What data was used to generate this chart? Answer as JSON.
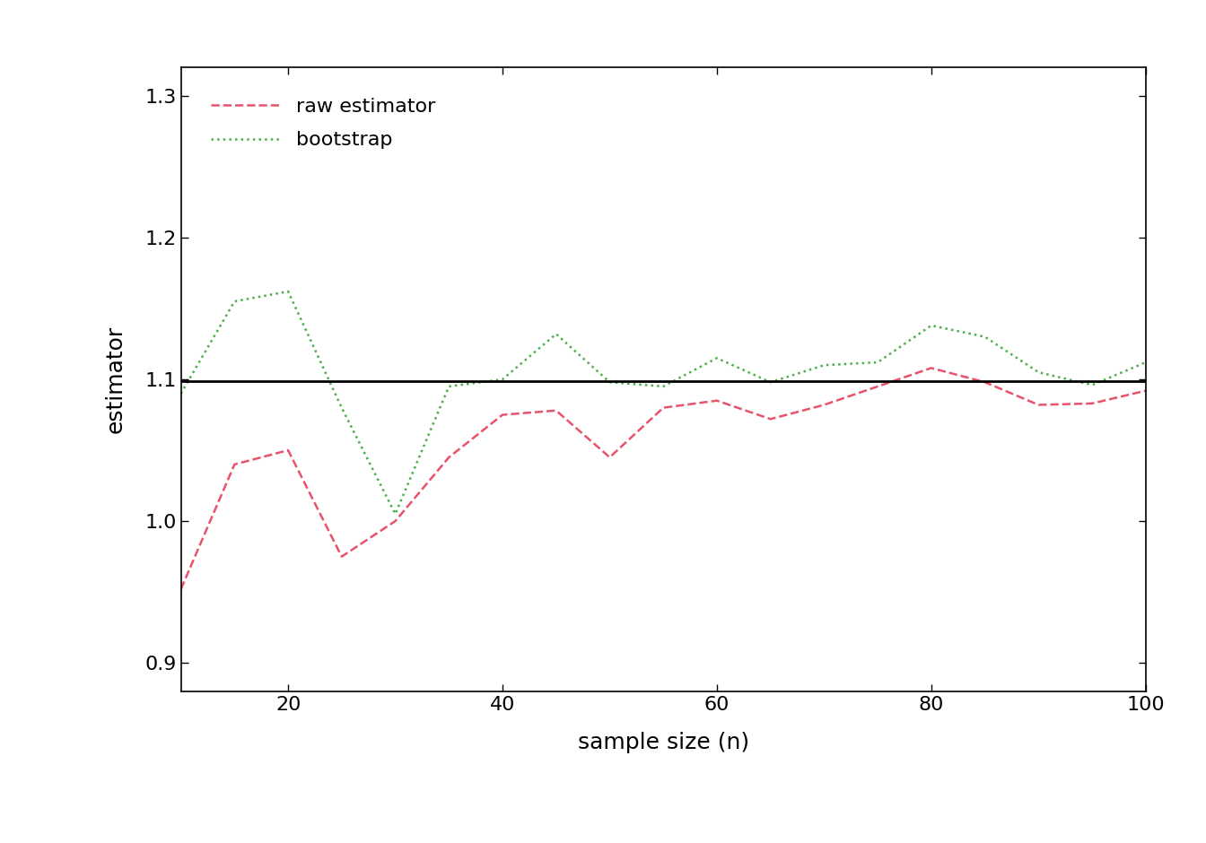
{
  "true_value": 1.0986122886681098,
  "x": [
    10,
    15,
    20,
    25,
    30,
    35,
    40,
    45,
    50,
    55,
    60,
    65,
    70,
    75,
    80,
    85,
    90,
    95,
    100
  ],
  "raw_estimator": [
    0.952,
    1.04,
    1.05,
    0.975,
    1.0,
    1.045,
    1.075,
    1.078,
    1.045,
    1.08,
    1.085,
    1.072,
    1.082,
    1.095,
    1.108,
    1.098,
    1.082,
    1.083,
    1.092
  ],
  "bootstrap": [
    1.09,
    1.155,
    1.162,
    1.08,
    1.005,
    1.095,
    1.1,
    1.132,
    1.098,
    1.095,
    1.115,
    1.098,
    1.11,
    1.112,
    1.138,
    1.13,
    1.105,
    1.096,
    1.112
  ],
  "raw_color": "#e8526a",
  "bootstrap_color": "#4daf4a",
  "true_color": "#000000",
  "xlabel": "sample size (n)",
  "ylabel": "estimator",
  "xlim": [
    10,
    100
  ],
  "ylim": [
    0.88,
    1.32
  ],
  "yticks": [
    0.9,
    1.0,
    1.1,
    1.2,
    1.3
  ],
  "xticks": [
    20,
    40,
    60,
    80,
    100
  ],
  "legend_labels": [
    "raw estimator",
    "bootstrap"
  ],
  "legend_loc": "upper left",
  "raw_linestyle": "dashed",
  "bootstrap_linestyle": "dotted",
  "linewidth": 1.8,
  "fontsize_axis_label": 18,
  "fontsize_tick": 16,
  "fontsize_legend": 16
}
